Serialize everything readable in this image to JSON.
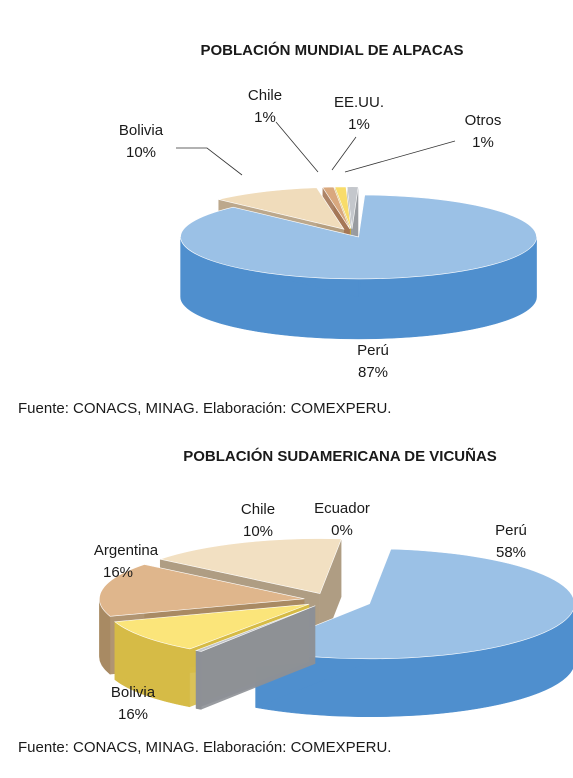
{
  "chart_data": [
    {
      "type": "pie",
      "title": "POBLACIÓN MUNDIAL DE ALPACAS",
      "slices": [
        {
          "label": "Perú",
          "pct_label": "87%",
          "value": 87,
          "color": "#9bc1e6",
          "side": "#4f8fce"
        },
        {
          "label": "Bolivia",
          "pct_label": "10%",
          "value": 10,
          "color": "#f0dcbb",
          "side": "#b59e80"
        },
        {
          "label": "Chile",
          "pct_label": "1%",
          "value": 1,
          "color": "#d9a87e",
          "side": "#a47756"
        },
        {
          "label": "EE.UU.",
          "pct_label": "1%",
          "value": 1,
          "color": "#f8dc6a",
          "side": "#c8aa3a"
        },
        {
          "label": "Otros",
          "pct_label": "1%",
          "value": 1,
          "color": "#c4c7cc",
          "side": "#8d9096"
        }
      ],
      "source": "Fuente: CONACS, MINAG. Elaboración: COMEXPERU."
    },
    {
      "type": "pie",
      "title": "POBLACIÓN SUDAMERICANA DE VICUÑAS",
      "slices": [
        {
          "label": "Perú",
          "pct_label": "58%",
          "value": 58,
          "color": "#9bc1e6",
          "side": "#4f8fce"
        },
        {
          "label": "Ecuador",
          "pct_label": "0%",
          "value": 0.5,
          "color": "#c4c7cc",
          "side": "#8d9096"
        },
        {
          "label": "Chile",
          "pct_label": "10%",
          "value": 10,
          "color": "#fbe57a",
          "side": "#d6bb46"
        },
        {
          "label": "Argentina",
          "pct_label": "16%",
          "value": 16,
          "color": "#dfb68c",
          "side": "#a88a63"
        },
        {
          "label": "Bolivia",
          "pct_label": "16%",
          "value": 16,
          "color": "#f2e0c2",
          "side": "#a69276"
        }
      ],
      "source": "Fuente: CONACS, MINAG. Elaboración: COMEXPERU."
    }
  ]
}
